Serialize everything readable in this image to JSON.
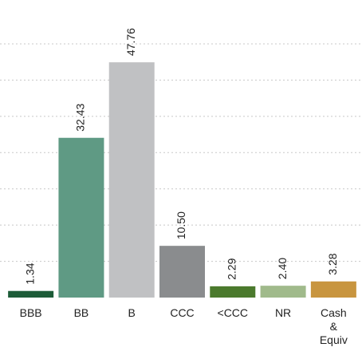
{
  "chart_data": {
    "type": "bar",
    "categories": [
      "BBB",
      "BB",
      "B",
      "CCC",
      "<CCC",
      "NR",
      "Cash & Equiv"
    ],
    "values": [
      1.34,
      32.43,
      47.76,
      10.5,
      2.29,
      2.4,
      3.28
    ],
    "value_labels": [
      "1.34",
      "32.43",
      "47.76",
      "10.50",
      "2.29",
      "2.40",
      "3.28"
    ],
    "colors": [
      "#1d5c38",
      "#5f9a84",
      "#c0c1c3",
      "#8a8c8e",
      "#4b7a2d",
      "#a0ba8b",
      "#c8953f"
    ],
    "ylim": [
      0,
      51.5
    ],
    "grid": true
  }
}
